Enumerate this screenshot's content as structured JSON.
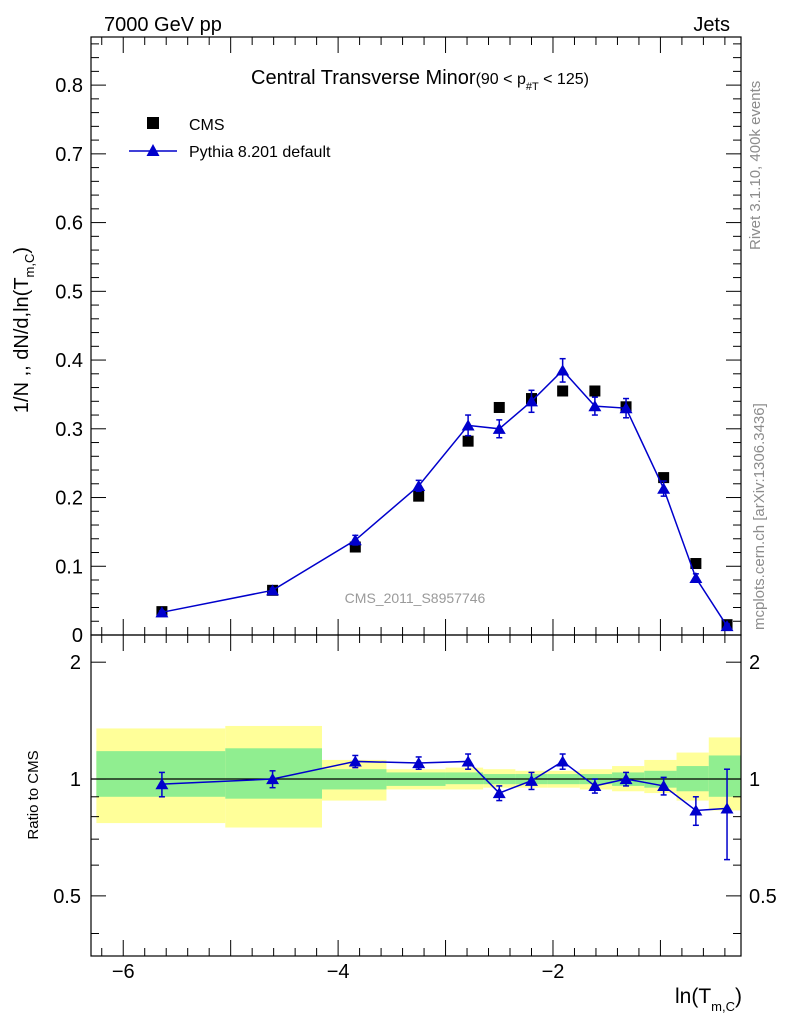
{
  "header": {
    "left": "7000 GeV pp",
    "right": "Jets"
  },
  "side_labels": {
    "rivet": "Rivet 3.1.10,  400k events",
    "mcplots": "mcplots.cern.ch [arXiv:1306.3436]"
  },
  "watermark": "CMS_2011_S8957746",
  "colors": {
    "data": "#000000",
    "mc": "#0000cc",
    "band_inner": "#90ee90",
    "band_outer": "#ffff99"
  },
  "chart_data": [
    {
      "type": "scatter",
      "title": "Central Transverse Minor",
      "title_range": {
        "open": "(90 < p",
        "sub": "#T",
        "close": " < 125)"
      },
      "ylabel": "1/N ,, dN/d,ln(T",
      "ylabel_sub": "m,C",
      "ylabel_close": ")",
      "ylim": [
        0,
        0.87
      ],
      "xlim": [
        -6.3,
        -0.25
      ],
      "yticks": [
        0,
        0.1,
        0.2,
        0.3,
        0.4,
        0.5,
        0.6,
        0.7,
        0.8
      ],
      "ytick_labels": [
        "0",
        "0.1",
        "0.2",
        "0.3",
        "0.4",
        "0.5",
        "0.6",
        "0.7",
        "0.8"
      ],
      "legend": {
        "position": "top-left",
        "entries": [
          "CMS",
          "Pythia 8.201 default"
        ]
      },
      "series": [
        {
          "name": "CMS",
          "marker": "square",
          "x": [
            -5.64,
            -4.61,
            -3.84,
            -3.25,
            -2.79,
            -2.5,
            -2.2,
            -1.91,
            -1.61,
            -1.32,
            -0.97,
            -0.67,
            -0.38
          ],
          "y": [
            0.034,
            0.065,
            0.128,
            0.202,
            0.282,
            0.331,
            0.344,
            0.355,
            0.355,
            0.332,
            0.229,
            0.104,
            0.015
          ]
        },
        {
          "name": "Pythia 8.201 default",
          "marker": "triangle",
          "x": [
            -5.64,
            -4.61,
            -3.84,
            -3.25,
            -2.79,
            -2.5,
            -2.2,
            -1.91,
            -1.61,
            -1.32,
            -0.97,
            -0.67,
            -0.38
          ],
          "y": [
            0.033,
            0.065,
            0.138,
            0.217,
            0.305,
            0.3,
            0.34,
            0.385,
            0.333,
            0.33,
            0.213,
            0.083,
            0.013
          ],
          "err": [
            0.002,
            0.003,
            0.007,
            0.008,
            0.015,
            0.013,
            0.016,
            0.017,
            0.013,
            0.014,
            0.011,
            0.006,
            0.003
          ]
        }
      ]
    },
    {
      "type": "scatter",
      "ylabel": "Ratio to CMS",
      "xlabel": "ln(T",
      "xlabel_sub": "m,C",
      "xlabel_close": ")",
      "ylim": [
        0.35,
        2.35
      ],
      "xlim": [
        -6.3,
        -0.25
      ],
      "xticks": [
        -6,
        -4,
        -2
      ],
      "xtick_labels": [
        "−6",
        "−4",
        "−2"
      ],
      "yticks": [
        0.5,
        1,
        2
      ],
      "ytick_labels": [
        "0.5",
        "1",
        "2"
      ],
      "bins": [
        {
          "lo": -6.25,
          "hi": -5.05,
          "inner": [
            0.9,
            1.18
          ],
          "outer": [
            0.77,
            1.35
          ]
        },
        {
          "lo": -5.05,
          "hi": -4.15,
          "inner": [
            0.89,
            1.2
          ],
          "outer": [
            0.75,
            1.37
          ]
        },
        {
          "lo": -4.15,
          "hi": -3.55,
          "inner": [
            0.94,
            1.06
          ],
          "outer": [
            0.88,
            1.12
          ]
        },
        {
          "lo": -3.55,
          "hi": -3.0,
          "inner": [
            0.96,
            1.04
          ],
          "outer": [
            0.94,
            1.06
          ]
        },
        {
          "lo": -3.0,
          "hi": -2.65,
          "inner": [
            0.97,
            1.04
          ],
          "outer": [
            0.94,
            1.07
          ]
        },
        {
          "lo": -2.65,
          "hi": -2.35,
          "inner": [
            0.97,
            1.03
          ],
          "outer": [
            0.95,
            1.06
          ]
        },
        {
          "lo": -2.35,
          "hi": -2.05,
          "inner": [
            0.97,
            1.03
          ],
          "outer": [
            0.95,
            1.05
          ]
        },
        {
          "lo": -2.05,
          "hi": -1.75,
          "inner": [
            0.97,
            1.03
          ],
          "outer": [
            0.95,
            1.05
          ]
        },
        {
          "lo": -1.75,
          "hi": -1.45,
          "inner": [
            0.97,
            1.03
          ],
          "outer": [
            0.94,
            1.06
          ]
        },
        {
          "lo": -1.45,
          "hi": -1.15,
          "inner": [
            0.96,
            1.04
          ],
          "outer": [
            0.93,
            1.08
          ]
        },
        {
          "lo": -1.15,
          "hi": -0.85,
          "inner": [
            0.95,
            1.05
          ],
          "outer": [
            0.92,
            1.12
          ]
        },
        {
          "lo": -0.85,
          "hi": -0.55,
          "inner": [
            0.93,
            1.08
          ],
          "outer": [
            0.88,
            1.17
          ]
        },
        {
          "lo": -0.55,
          "hi": -0.25,
          "inner": [
            0.9,
            1.15
          ],
          "outer": [
            0.83,
            1.28
          ]
        }
      ],
      "series": [
        {
          "name": "Pythia 8.201 default",
          "marker": "triangle",
          "x": [
            -5.64,
            -4.61,
            -3.84,
            -3.25,
            -2.79,
            -2.5,
            -2.2,
            -1.91,
            -1.61,
            -1.32,
            -0.97,
            -0.67,
            -0.38
          ],
          "y": [
            0.97,
            1.0,
            1.11,
            1.1,
            1.11,
            0.92,
            0.99,
            1.11,
            0.96,
            1.0,
            0.96,
            0.83,
            0.84
          ],
          "err": [
            0.07,
            0.05,
            0.04,
            0.04,
            0.05,
            0.04,
            0.05,
            0.05,
            0.04,
            0.04,
            0.05,
            0.07,
            0.22
          ]
        }
      ]
    }
  ]
}
